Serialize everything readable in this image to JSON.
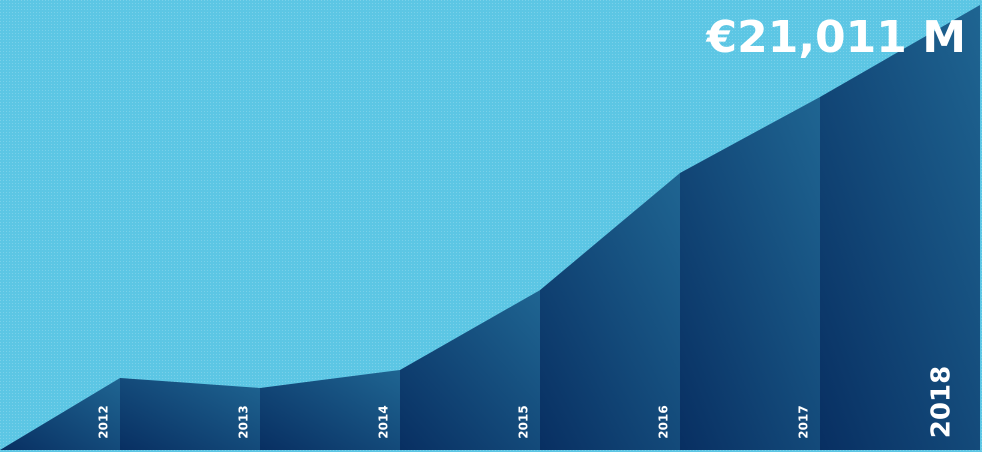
{
  "chart_data": {
    "type": "area",
    "categories": [
      "2012",
      "2013",
      "2014",
      "2015",
      "2016",
      "2017",
      "2018"
    ],
    "values": [
      3400,
      2930,
      3780,
      7550,
      13080,
      16670,
      21011
    ],
    "value_labels": [
      null,
      null,
      null,
      null,
      null,
      null,
      "€21,011 M"
    ],
    "color": "#0d3f72",
    "background": "#5cc6e4"
  }
}
